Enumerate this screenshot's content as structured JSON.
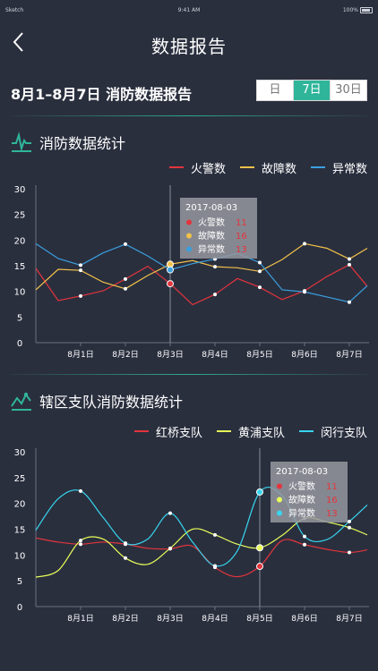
{
  "status_bar": {
    "carrier": "Sketch",
    "time": "9:41 AM",
    "battery": "100%"
  },
  "nav": {
    "title": "数据报告",
    "back_icon": "chevron-left-icon"
  },
  "report": {
    "title": "8月1–8月7日 消防数据报告",
    "ranges": [
      {
        "label": "日",
        "active": false
      },
      {
        "label": "7日",
        "active": true
      },
      {
        "label": "30日",
        "active": false
      }
    ]
  },
  "colors": {
    "red": "#e4343c",
    "yellow": "#f3c24a",
    "blue": "#3aa0e0",
    "lime": "#e8ff5a",
    "cyan": "#37d5ef",
    "accent": "#2fb59a",
    "background": "#2a2f3e"
  },
  "section1": {
    "title": "消防数据统计",
    "icon": "pulse-icon"
  },
  "section2": {
    "title": "辖区支队消防数据统计",
    "icon": "trend-icon"
  },
  "chart_data": [
    {
      "type": "line",
      "title": "消防数据统计",
      "categories": [
        "8月1日",
        "8月2日",
        "8月3日",
        "8月4日",
        "8月5日",
        "8月6日",
        "8月7日"
      ],
      "ylim": [
        0,
        30
      ],
      "yticks": [
        0,
        5,
        10,
        15,
        20,
        25,
        30
      ],
      "legend_position": "top-right",
      "grid": false,
      "x": [
        0,
        0.5,
        1,
        1.5,
        2,
        2.5,
        3,
        3.5,
        4,
        4.5,
        5,
        5.5,
        6,
        6.5,
        7,
        7.4
      ],
      "series": [
        {
          "name": "火警数",
          "color": "#e4343c",
          "values": [
            14.5,
            8.2,
            9.1,
            10.1,
            12.4,
            14.9,
            11.5,
            7.4,
            9.4,
            12.5,
            10.8,
            8.4,
            10.1,
            12.9,
            15.2,
            11.0
          ]
        },
        {
          "name": "故障数",
          "color": "#f3c24a",
          "values": [
            10.3,
            14.3,
            14.1,
            11.8,
            10.5,
            13.1,
            15.3,
            16.0,
            14.8,
            14.6,
            13.9,
            16.2,
            19.3,
            18.4,
            16.3,
            18.4
          ]
        },
        {
          "name": "异常数",
          "color": "#3aa0e0",
          "values": [
            19.3,
            16.4,
            15.1,
            17.5,
            19.2,
            16.9,
            14.2,
            15.4,
            16.3,
            17.4,
            15.6,
            10.3,
            9.9,
            8.9,
            7.9,
            11.1
          ]
        }
      ],
      "markers": [
        {
          "series": 0,
          "indices": [
            2,
            4,
            6,
            8,
            10,
            12,
            14
          ]
        },
        {
          "series": 1,
          "indices": [
            2,
            4,
            6,
            8,
            10,
            12,
            14
          ]
        },
        {
          "series": 2,
          "indices": [
            2,
            4,
            6,
            8,
            10,
            12,
            14
          ]
        }
      ],
      "tooltip": {
        "date": "2017-08-03",
        "category_index": 2,
        "rows": [
          {
            "label": "火警数",
            "value": 11,
            "color": "#e4343c"
          },
          {
            "label": "故障数",
            "value": 16,
            "color": "#f3c24a"
          },
          {
            "label": "异常数",
            "value": 13,
            "color": "#3aa0e0"
          }
        ]
      }
    },
    {
      "type": "line",
      "title": "辖区支队消防数据统计",
      "categories": [
        "8月1日",
        "8月2日",
        "8月3日",
        "8月4日",
        "8月5日",
        "8月6日",
        "8月7日"
      ],
      "ylim": [
        0,
        30
      ],
      "yticks": [
        0,
        5,
        10,
        15,
        20,
        25,
        30
      ],
      "legend_position": "top-right",
      "grid": false,
      "smooth": true,
      "x": [
        0,
        0.5,
        1,
        1.5,
        2,
        2.5,
        3,
        3.5,
        4,
        4.5,
        5,
        5.5,
        6,
        6.5,
        7,
        7.4
      ],
      "series": [
        {
          "name": "红桥支队",
          "color": "#e4343c",
          "values": [
            13.3,
            12.5,
            12.1,
            12.5,
            12.1,
            11.3,
            11.2,
            11.7,
            7.6,
            5.8,
            7.8,
            12.8,
            12.0,
            11.1,
            10.5,
            11.0
          ]
        },
        {
          "name": "黄浦支队",
          "color": "#e8ff5a",
          "values": [
            5.7,
            7.0,
            12.8,
            13.1,
            9.4,
            8.2,
            11.3,
            15.0,
            13.9,
            12.1,
            11.4,
            13.8,
            17.1,
            16.4,
            15.3,
            13.9
          ]
        },
        {
          "name": "闵行支队",
          "color": "#37d5ef",
          "values": [
            14.8,
            20.9,
            22.4,
            17.3,
            12.3,
            13.1,
            18.1,
            12.5,
            7.9,
            10.8,
            22.2,
            21.5,
            13.6,
            13.0,
            16.5,
            19.7
          ]
        }
      ],
      "markers": [
        {
          "series": 0,
          "indices": [
            2,
            4,
            6,
            8,
            10,
            12,
            14
          ]
        },
        {
          "series": 1,
          "indices": [
            2,
            4,
            6,
            8,
            10,
            12,
            14
          ]
        },
        {
          "series": 2,
          "indices": [
            2,
            4,
            6,
            8,
            10,
            12,
            14
          ]
        }
      ],
      "tooltip": {
        "date": "2017-08-03",
        "category_index": 4,
        "rows": [
          {
            "label": "火警数",
            "value": 11,
            "color": "#e4343c"
          },
          {
            "label": "故障数",
            "value": 16,
            "color": "#e8ff5a"
          },
          {
            "label": "异常数",
            "value": 13,
            "color": "#37d5ef"
          }
        ]
      }
    }
  ]
}
